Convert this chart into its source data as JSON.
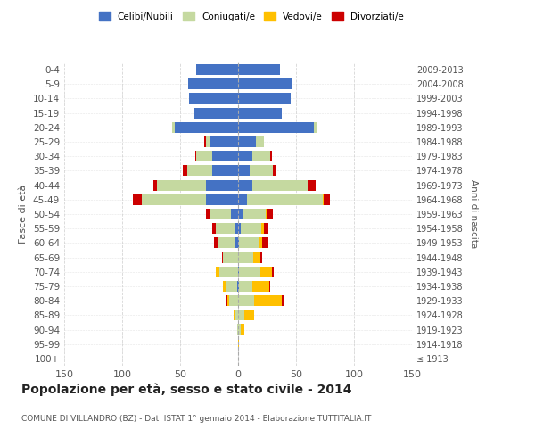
{
  "age_groups": [
    "100+",
    "95-99",
    "90-94",
    "85-89",
    "80-84",
    "75-79",
    "70-74",
    "65-69",
    "60-64",
    "55-59",
    "50-54",
    "45-49",
    "40-44",
    "35-39",
    "30-34",
    "25-29",
    "20-24",
    "15-19",
    "10-14",
    "5-9",
    "0-4"
  ],
  "birth_years": [
    "≤ 1913",
    "1914-1918",
    "1919-1923",
    "1924-1928",
    "1929-1933",
    "1934-1938",
    "1939-1943",
    "1944-1948",
    "1949-1953",
    "1954-1958",
    "1959-1963",
    "1964-1968",
    "1969-1973",
    "1974-1978",
    "1979-1983",
    "1984-1988",
    "1989-1993",
    "1994-1998",
    "1999-2003",
    "2004-2008",
    "2009-2013"
  ],
  "male": {
    "celibi": [
      0,
      0,
      0,
      0,
      0,
      1,
      0,
      0,
      2,
      3,
      6,
      28,
      28,
      22,
      22,
      24,
      55,
      38,
      42,
      43,
      36
    ],
    "coniugati": [
      0,
      0,
      1,
      3,
      8,
      10,
      16,
      13,
      16,
      16,
      18,
      55,
      42,
      22,
      14,
      4,
      2,
      0,
      0,
      0,
      0
    ],
    "vedovi": [
      0,
      0,
      0,
      1,
      1,
      2,
      3,
      0,
      0,
      0,
      0,
      0,
      0,
      0,
      0,
      0,
      0,
      0,
      0,
      0,
      0
    ],
    "divorziati": [
      0,
      0,
      0,
      0,
      1,
      0,
      0,
      1,
      3,
      3,
      4,
      8,
      3,
      4,
      1,
      1,
      0,
      0,
      0,
      0,
      0
    ]
  },
  "female": {
    "nubili": [
      0,
      0,
      0,
      0,
      0,
      1,
      1,
      0,
      1,
      2,
      4,
      8,
      12,
      10,
      12,
      15,
      65,
      38,
      45,
      46,
      36
    ],
    "coniugate": [
      0,
      0,
      2,
      5,
      14,
      11,
      18,
      13,
      17,
      18,
      20,
      65,
      48,
      20,
      16,
      7,
      3,
      0,
      0,
      0,
      0
    ],
    "vedove": [
      0,
      1,
      3,
      9,
      24,
      15,
      10,
      6,
      3,
      2,
      1,
      1,
      0,
      0,
      0,
      0,
      0,
      0,
      0,
      0,
      0
    ],
    "divorziate": [
      0,
      0,
      0,
      0,
      1,
      1,
      2,
      2,
      5,
      4,
      5,
      5,
      7,
      3,
      1,
      0,
      0,
      0,
      0,
      0,
      0
    ]
  },
  "colors": {
    "celibi": "#4472c4",
    "coniugati": "#c5d9a0",
    "vedovi": "#ffc000",
    "divorziati": "#cc0000"
  },
  "xlim": 150,
  "title": "Popolazione per età, sesso e stato civile - 2014",
  "subtitle": "COMUNE DI VILLANDRO (BZ) - Dati ISTAT 1° gennaio 2014 - Elaborazione TUTTITALIA.IT",
  "ylabel_left": "Fasce di età",
  "ylabel_right": "Anni di nascita",
  "legend_labels": [
    "Celibi/Nubili",
    "Coniugati/e",
    "Vedovi/e",
    "Divorziati/e"
  ],
  "bg_color": "#ffffff",
  "grid_color": "#cccccc"
}
